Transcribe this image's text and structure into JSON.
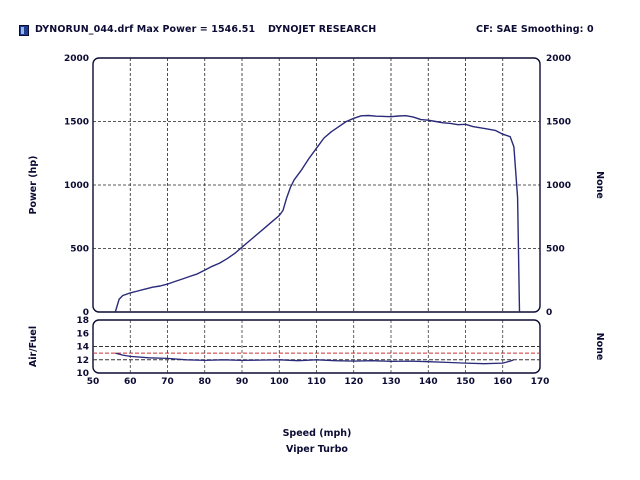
{
  "header": {
    "title": "DYNORUN_044.drf Max Power = 1546.51",
    "company": "DYNOJET RESEARCH",
    "settings": "CF: SAE  Smoothing: 0",
    "icon": "file-icon"
  },
  "chart_data": [
    {
      "type": "line",
      "xlabel": "Speed (mph)",
      "subtitle": "Viper Turbo",
      "ylabel": "Power (hp)",
      "ylabel_right": "None",
      "xlim": [
        50,
        170
      ],
      "ylim": [
        0,
        2000
      ],
      "x_ticks": [
        "50",
        "60",
        "70",
        "80",
        "90",
        "100",
        "110",
        "120",
        "130",
        "140",
        "150",
        "160",
        "170"
      ],
      "y_ticks": [
        "0",
        "500",
        "1000",
        "1500",
        "2000"
      ],
      "grid": true,
      "color": "#2a2a7a",
      "series": [
        {
          "x": [
            56,
            57,
            58,
            60,
            62,
            64,
            66,
            68,
            70,
            72,
            74,
            76,
            78,
            80,
            82,
            84,
            86,
            88,
            90,
            92,
            94,
            96,
            98,
            100,
            101,
            102,
            103,
            104,
            106,
            108,
            110,
            112,
            114,
            116,
            118,
            120,
            122,
            124,
            126,
            128,
            130,
            132,
            134,
            136,
            138,
            140,
            142,
            144,
            146,
            148,
            150,
            152,
            154,
            156,
            158,
            160,
            162,
            163,
            164,
            164.5
          ],
          "y": [
            0,
            100,
            130,
            150,
            165,
            180,
            195,
            205,
            220,
            240,
            260,
            280,
            300,
            330,
            360,
            385,
            420,
            460,
            510,
            560,
            610,
            660,
            710,
            760,
            800,
            900,
            980,
            1040,
            1120,
            1210,
            1290,
            1370,
            1420,
            1460,
            1500,
            1525,
            1545,
            1547,
            1542,
            1540,
            1538,
            1543,
            1546,
            1535,
            1515,
            1510,
            1500,
            1490,
            1485,
            1475,
            1478,
            1460,
            1450,
            1440,
            1430,
            1400,
            1380,
            1300,
            900,
            0
          ]
        }
      ]
    },
    {
      "type": "line",
      "ylabel": "Air/Fuel",
      "ylabel_right": "None",
      "xlim": [
        50,
        170
      ],
      "ylim": [
        10,
        18
      ],
      "y_ticks": [
        "10",
        "12",
        "14",
        "16",
        "18"
      ],
      "reference_lines": [
        {
          "y": 13,
          "color": "#cc3333",
          "style": "dashed"
        },
        {
          "y": 14,
          "color": "#333333",
          "style": "dashed"
        },
        {
          "y": 12,
          "color": "#333333",
          "style": "dashed"
        }
      ],
      "series": [
        {
          "x": [
            56,
            58,
            60,
            65,
            70,
            75,
            80,
            85,
            90,
            95,
            100,
            105,
            110,
            115,
            120,
            125,
            130,
            135,
            140,
            145,
            150,
            155,
            160,
            162,
            163
          ],
          "y": [
            13.0,
            12.7,
            12.5,
            12.3,
            12.2,
            12.0,
            11.9,
            12.0,
            11.9,
            11.95,
            12.0,
            11.85,
            12.0,
            11.85,
            11.8,
            11.85,
            11.75,
            11.8,
            11.7,
            11.6,
            11.5,
            11.4,
            11.5,
            11.8,
            12.0
          ]
        }
      ]
    }
  ]
}
